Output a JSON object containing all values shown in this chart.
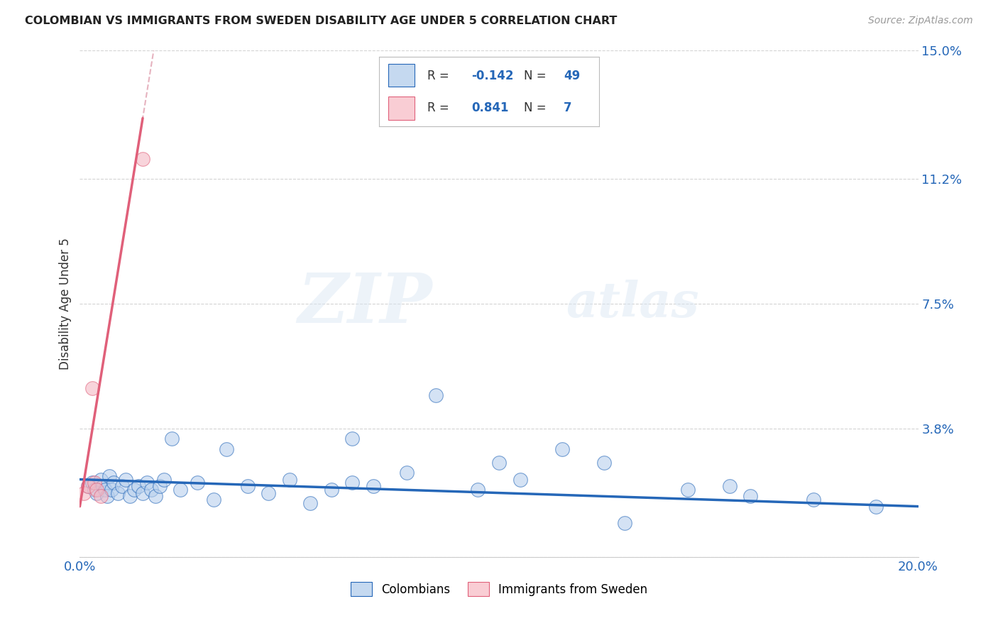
{
  "title": "COLOMBIAN VS IMMIGRANTS FROM SWEDEN DISABILITY AGE UNDER 5 CORRELATION CHART",
  "source": "Source: ZipAtlas.com",
  "ylabel_label": "Disability Age Under 5",
  "ylabel_ticks": [
    0.0,
    3.8,
    7.5,
    11.2,
    15.0
  ],
  "ylabel_tick_labels": [
    "",
    "3.8%",
    "7.5%",
    "11.2%",
    "15.0%"
  ],
  "xmin": 0.0,
  "xmax": 20.0,
  "ymin": 0.0,
  "ymax": 15.0,
  "watermark_zip": "ZIP",
  "watermark_atlas": "atlas",
  "legend_entry1_color": "#c5d9f0",
  "legend_entry2_color": "#f9cdd4",
  "legend_entry1_label": "Colombians",
  "legend_entry2_label": "Immigrants from Sweden",
  "R1": -0.142,
  "N1": 49,
  "R2": 0.841,
  "N2": 7,
  "blue_scatter_x": [
    0.2,
    0.3,
    0.35,
    0.4,
    0.5,
    0.55,
    0.6,
    0.65,
    0.7,
    0.75,
    0.8,
    0.9,
    1.0,
    1.1,
    1.2,
    1.3,
    1.4,
    1.5,
    1.6,
    1.7,
    1.8,
    1.9,
    2.0,
    2.2,
    2.4,
    2.8,
    3.2,
    3.5,
    4.0,
    4.5,
    5.0,
    5.5,
    6.0,
    6.5,
    7.0,
    7.8,
    8.5,
    9.5,
    10.5,
    11.5,
    12.5,
    13.0,
    14.5,
    16.0,
    17.5,
    19.0,
    6.5,
    10.0,
    15.5
  ],
  "blue_scatter_y": [
    2.1,
    2.2,
    2.0,
    1.9,
    2.3,
    2.1,
    2.0,
    1.8,
    2.4,
    2.0,
    2.2,
    1.9,
    2.1,
    2.3,
    1.8,
    2.0,
    2.1,
    1.9,
    2.2,
    2.0,
    1.8,
    2.1,
    2.3,
    3.5,
    2.0,
    2.2,
    1.7,
    3.2,
    2.1,
    1.9,
    2.3,
    1.6,
    2.0,
    2.2,
    2.1,
    2.5,
    4.8,
    2.0,
    2.3,
    3.2,
    2.8,
    1.0,
    2.0,
    1.8,
    1.7,
    1.5,
    3.5,
    2.8,
    2.1
  ],
  "pink_scatter_x": [
    0.1,
    0.2,
    0.3,
    0.35,
    0.4,
    0.5,
    1.5
  ],
  "pink_scatter_y": [
    1.9,
    2.1,
    5.0,
    2.2,
    2.0,
    1.8,
    11.8
  ],
  "blue_line_x0": 0.0,
  "blue_line_x1": 20.0,
  "blue_line_y0": 2.3,
  "blue_line_y1": 1.5,
  "pink_line_x0": 0.0,
  "pink_line_x1": 1.5,
  "pink_line_y0": 1.5,
  "pink_line_y1": 13.0,
  "pink_dash_x0": -0.15,
  "pink_dash_x1": 0.0,
  "pink_dash_y0": 0.0,
  "pink_dash_y1": 1.5,
  "blue_scatter_color": "#b8d0ed",
  "pink_scatter_color": "#f4b8c4",
  "blue_line_color": "#2567b8",
  "pink_line_color": "#e0607a",
  "pink_dash_color": "#e0a0b0",
  "blue_dash_color": "#a0b8d8",
  "grid_color": "#c8c8c8",
  "background_color": "#ffffff",
  "title_color": "#222222",
  "text_color_blue": "#2567b8",
  "stats_text_color": "#2567b8",
  "stats_label_color": "#333333"
}
